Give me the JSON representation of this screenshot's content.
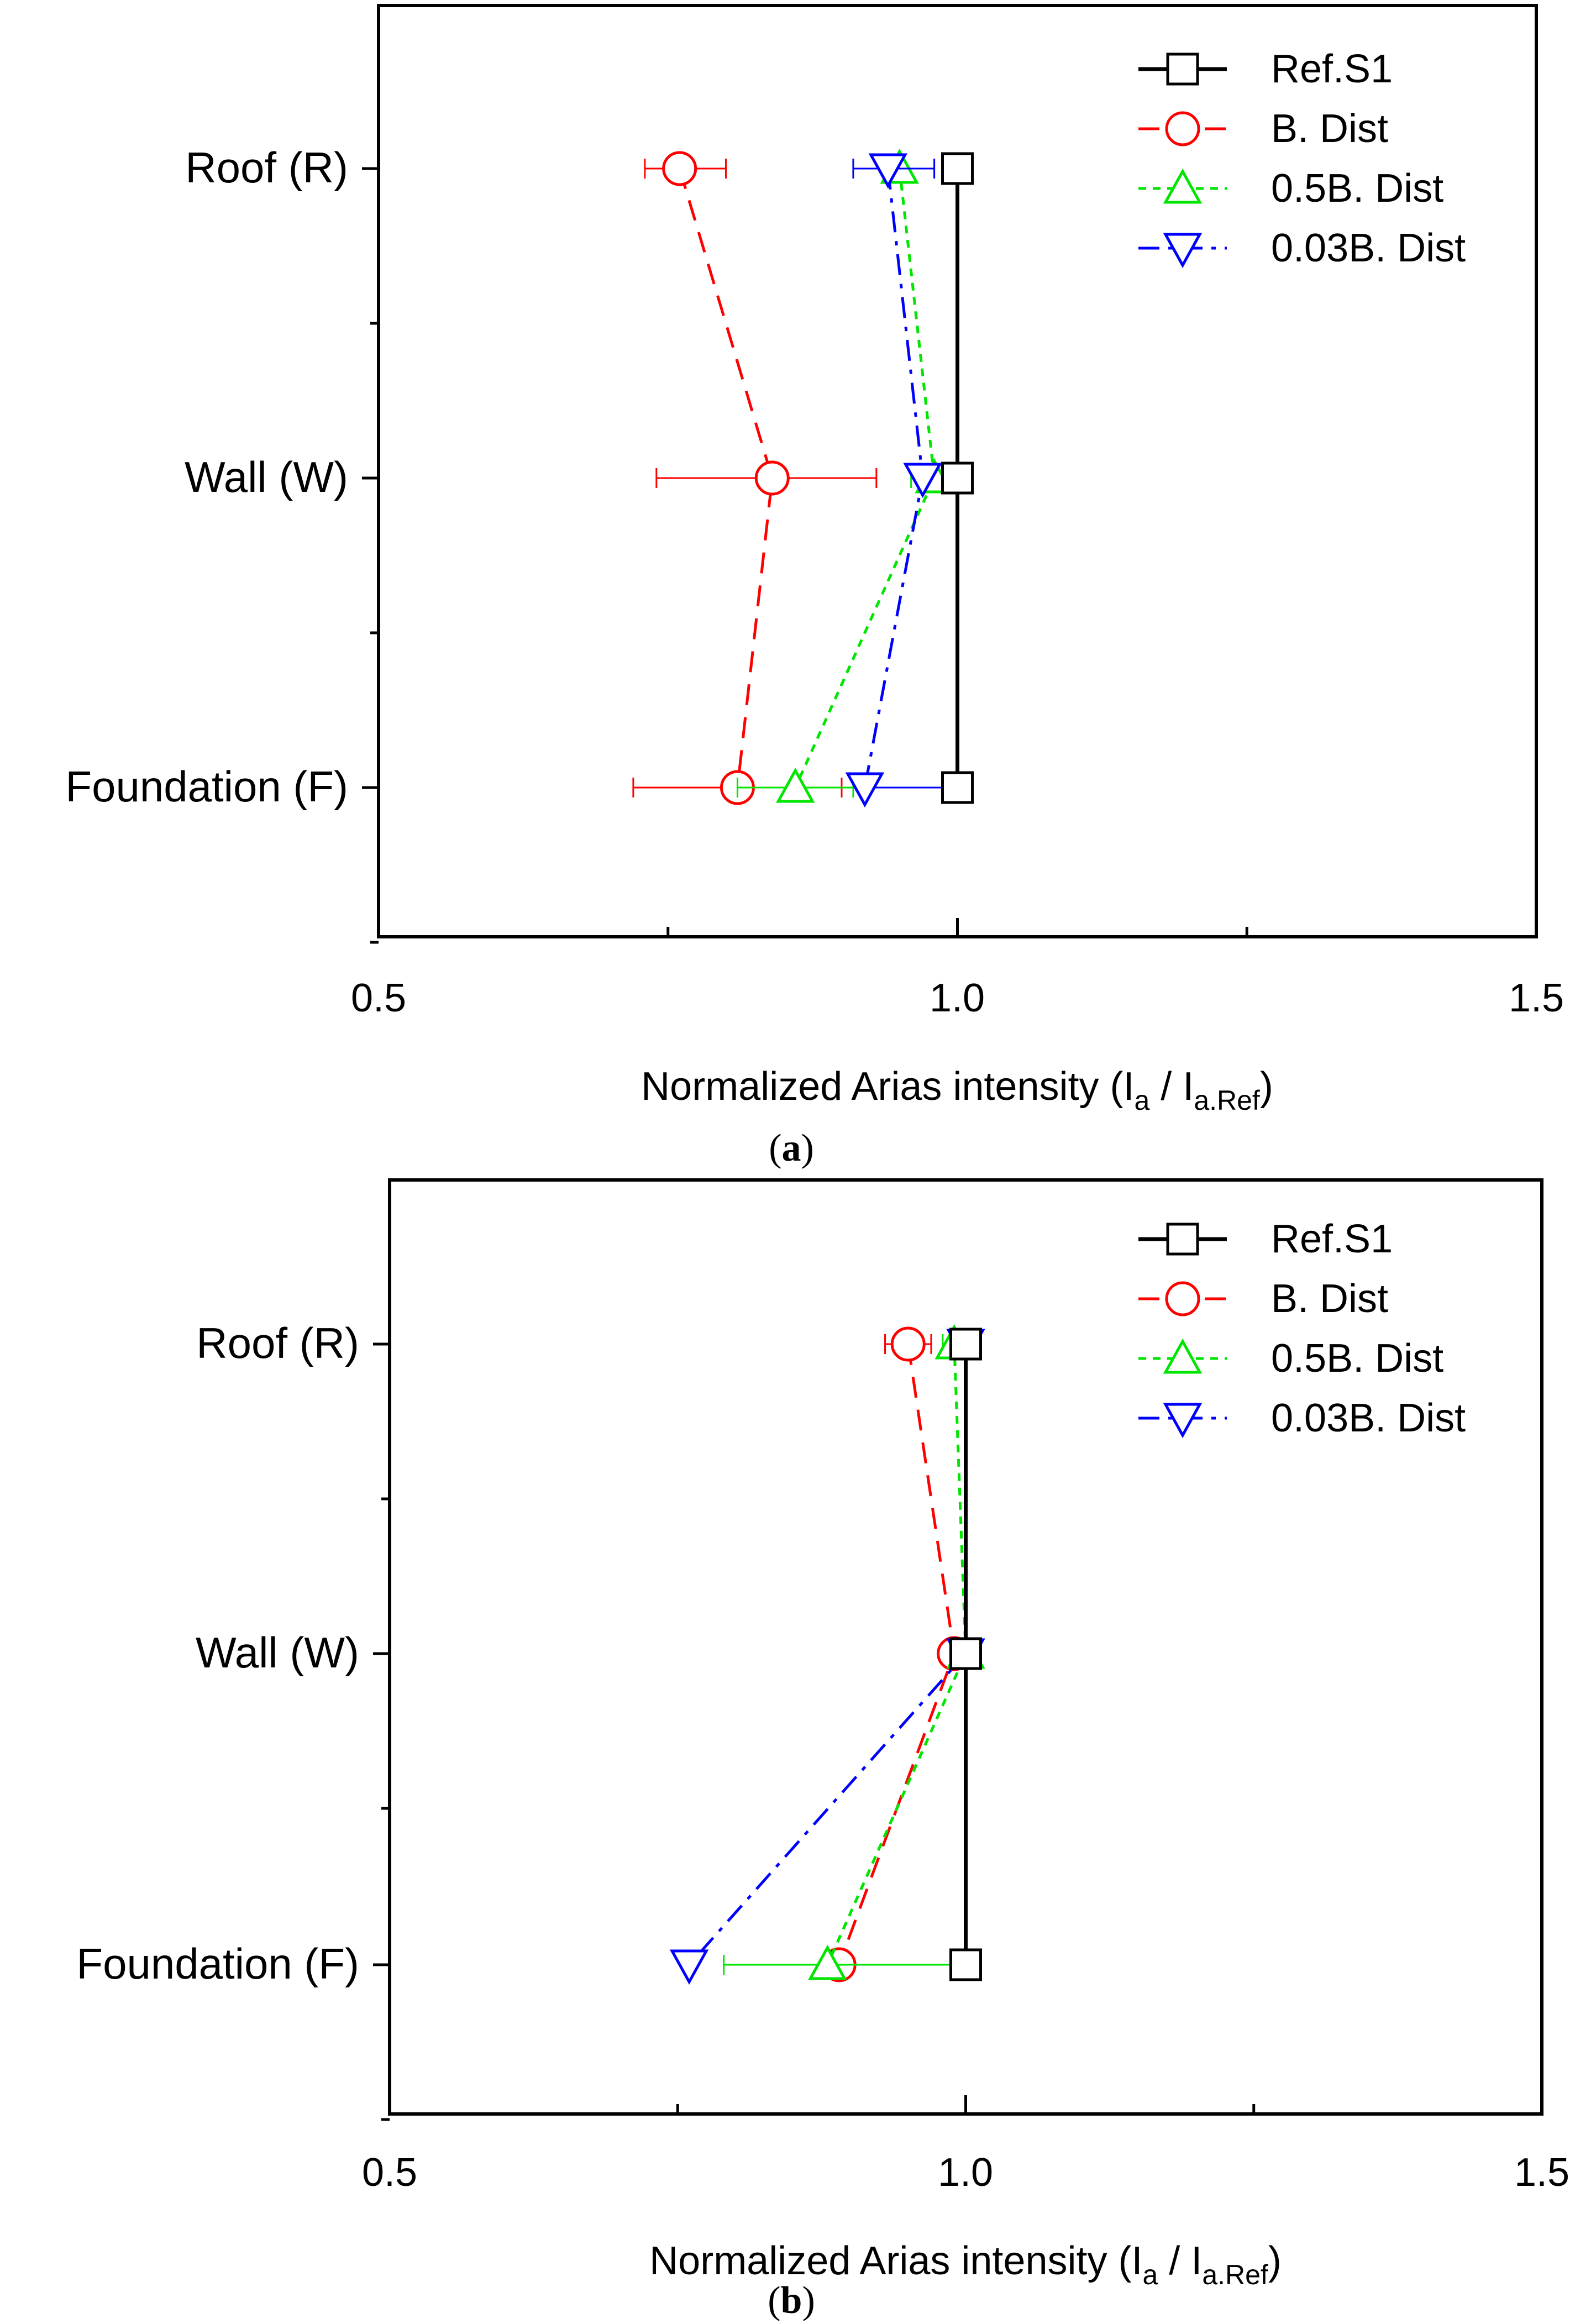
{
  "legend_markers": {
    "Ref.S1": "square",
    "B. Dist": "circle",
    "0.5B. Dist": "triangle-up",
    "0.03B. Dist": "triangle-down"
  },
  "chart_data": [
    {
      "type": "line",
      "panel_caption": "a",
      "xlabel": "Normalized Arias intensity (I_a / I_a.Ref)",
      "xlabel_parts": {
        "pre": "Normalized Arias intensity (I",
        "sub1": "a",
        "mid": " / I",
        "sub2": "a.Ref",
        "post": ")"
      },
      "xlim": [
        0.5,
        1.5
      ],
      "xticks": [
        "0.5",
        "1.0",
        "1.5"
      ],
      "categories": [
        "Roof (R)",
        "Wall (W)",
        "Foundation (F)"
      ],
      "legend_position": "top-right",
      "series": [
        {
          "name": "Ref.S1",
          "color": "#000000",
          "dash": "solid",
          "marker": "square",
          "values": [
            1.0,
            1.0,
            1.0
          ],
          "err_lo": [
            0,
            0,
            0
          ],
          "err_hi": [
            0,
            0,
            0
          ]
        },
        {
          "name": "B. Dist",
          "color": "#ff0000",
          "dash": "dash",
          "marker": "circle",
          "values": [
            0.76,
            0.84,
            0.81
          ],
          "err_lo": [
            0.03,
            0.1,
            0.09
          ],
          "err_hi": [
            0.04,
            0.09,
            0.09
          ]
        },
        {
          "name": "0.5B. Dist",
          "color": "#00e600",
          "dash": "dot",
          "marker": "triangle-up",
          "values": [
            0.95,
            0.98,
            0.86
          ],
          "err_lo": [
            0.04,
            0.02,
            0.05
          ],
          "err_hi": [
            0.03,
            0.02,
            0.05
          ]
        },
        {
          "name": "0.03B. Dist",
          "color": "#0000ff",
          "dash": "dashdot",
          "marker": "triangle-down",
          "values": [
            0.94,
            0.97,
            0.92
          ],
          "err_lo": [
            0.03,
            0.0,
            0.0
          ],
          "err_hi": [
            0.04,
            0.0,
            0.08
          ]
        }
      ]
    },
    {
      "type": "line",
      "panel_caption": "b",
      "xlabel": "Normalized Arias intensity (I_a / I_a.Ref)",
      "xlabel_parts": {
        "pre": "Normalized Arias intensity (I",
        "sub1": "a",
        "mid": " / I",
        "sub2": "a.Ref",
        "post": ")"
      },
      "xlim": [
        0.5,
        1.5
      ],
      "xticks": [
        "0.5",
        "1.0",
        "1.5"
      ],
      "categories": [
        "Roof (R)",
        "Wall (W)",
        "Foundation (F)"
      ],
      "legend_position": "top-right",
      "series": [
        {
          "name": "Ref.S1",
          "color": "#000000",
          "dash": "solid",
          "marker": "square",
          "values": [
            1.0,
            1.0,
            1.0
          ],
          "err_lo": [
            0,
            0,
            0
          ],
          "err_hi": [
            0,
            0,
            0
          ]
        },
        {
          "name": "B. Dist",
          "color": "#ff0000",
          "dash": "dash",
          "marker": "circle",
          "values": [
            0.95,
            0.99,
            0.89
          ],
          "err_lo": [
            0.02,
            0.0,
            0.0
          ],
          "err_hi": [
            0.02,
            0.0,
            0.0
          ]
        },
        {
          "name": "0.5B. Dist",
          "color": "#00e600",
          "dash": "dot",
          "marker": "triangle-up",
          "values": [
            0.99,
            1.0,
            0.88
          ],
          "err_lo": [
            0.01,
            0.0,
            0.09
          ],
          "err_hi": [
            0.01,
            0.0,
            0.11
          ]
        },
        {
          "name": "0.03B. Dist",
          "color": "#0000ff",
          "dash": "dashdot",
          "marker": "triangle-down",
          "values": [
            1.0,
            1.0,
            0.76
          ],
          "err_lo": [
            0,
            0,
            0
          ],
          "err_hi": [
            0,
            0,
            0
          ]
        }
      ]
    }
  ]
}
